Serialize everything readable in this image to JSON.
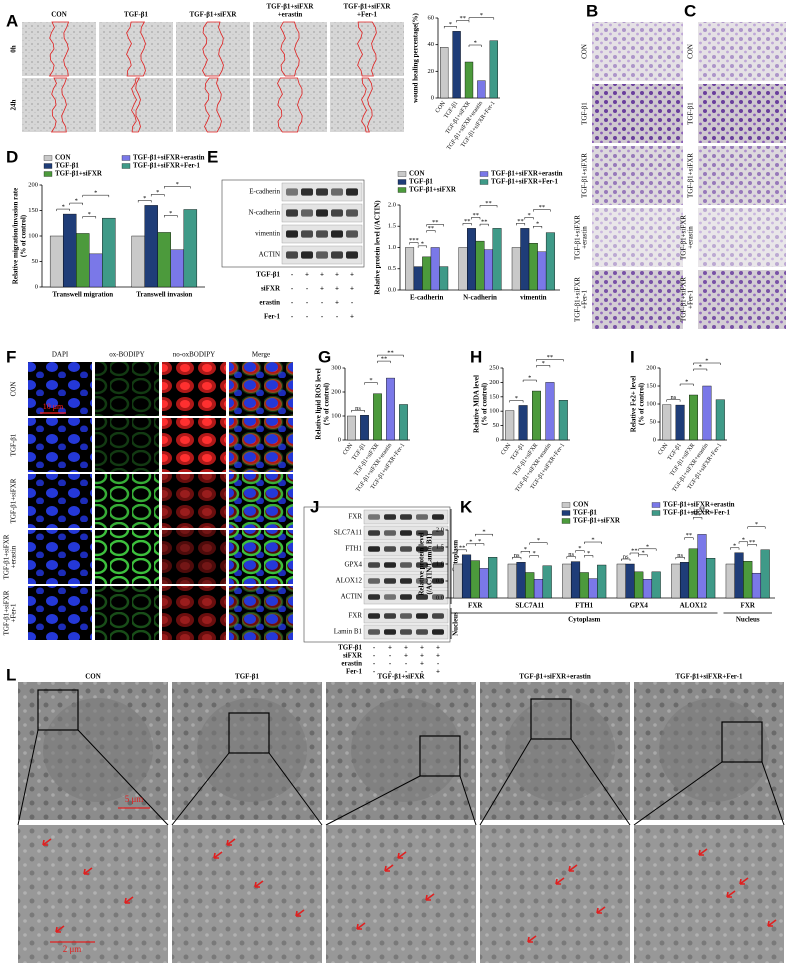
{
  "panel_labels": [
    "A",
    "B",
    "C",
    "D",
    "E",
    "F",
    "G",
    "H",
    "I",
    "J",
    "K",
    "L"
  ],
  "wound": {
    "columns": [
      [
        "CON"
      ],
      [
        "TGF-β1"
      ],
      [
        "TGF-β1+siFXR"
      ],
      [
        "TGF-β1+siFXR",
        "+erastin"
      ],
      [
        "TGF-β1+siFXR",
        "+Fer-1"
      ]
    ],
    "rows": [
      "0h",
      "24h"
    ]
  },
  "transwell_B": {
    "rows": [
      [
        "CON"
      ],
      [
        "TGF-β1"
      ],
      [
        "TGF-β1+siFXR"
      ],
      [
        "TGF-β1+siFXR",
        "+erastin"
      ],
      [
        "TGF-β1+siFXR",
        "+Fer-1"
      ]
    ]
  },
  "transwell_C": {
    "rows": [
      [
        "CON"
      ],
      [
        "TGF-β1"
      ],
      [
        "TGF-β1+siFXR"
      ],
      [
        "TGF-β1+siFXR",
        "+erastin"
      ],
      [
        "TGF-β1+siFXR",
        "+Fer-1"
      ]
    ]
  },
  "blot_E": {
    "bands": [
      "E-cadherin",
      "N-cadherin",
      "vimentin",
      "ACTIN"
    ],
    "treatments": [
      {
        "name": "TGF-β1",
        "signs": [
          "-",
          "+",
          "+",
          "+",
          "+"
        ]
      },
      {
        "name": "siFXR",
        "signs": [
          "-",
          "-",
          "+",
          "+",
          "+"
        ]
      },
      {
        "name": "erastin",
        "signs": [
          "-",
          "-",
          "-",
          "+",
          "-"
        ]
      },
      {
        "name": "Fer-1",
        "signs": [
          "-",
          "-",
          "-",
          "-",
          "+"
        ]
      }
    ]
  },
  "fluorescence": {
    "columns": [
      "DAPI",
      "ox-BODIPY",
      "no-oxBODIPY",
      "Merge"
    ],
    "rows": [
      [
        "CON"
      ],
      [
        "TGF-β1"
      ],
      [
        "TGF-β1+siFXR"
      ],
      [
        "TGF-β1+siFXR",
        "+erastin"
      ],
      [
        "TGF-β1+siFXR",
        "+Fer-1"
      ]
    ],
    "scale_bar": "10 μm"
  },
  "blot_J": {
    "bands": [
      "FXR",
      "SLC7A11",
      "FTH1",
      "GPX4",
      "ALOX12",
      "ACTIN",
      "FXR",
      "Lamin B1"
    ],
    "sections": [
      "Cytoplasm",
      "Nucleus"
    ],
    "treatments": [
      {
        "name": "TGF-β1",
        "signs": [
          "-",
          "+",
          "+",
          "+",
          "+"
        ]
      },
      {
        "name": "siFXR",
        "signs": [
          "-",
          "-",
          "+",
          "+",
          "+"
        ]
      },
      {
        "name": "erastin",
        "signs": [
          "-",
          "-",
          "-",
          "+",
          "-"
        ]
      },
      {
        "name": "Fer-1",
        "signs": [
          "-",
          "-",
          "-",
          "-",
          "+"
        ]
      }
    ]
  },
  "em": {
    "columns": [
      "CON",
      "TGF-β1",
      "TGF-β1+siFXR",
      "TGF-β1+siFXR+erastin",
      "TGF-β1+siFXR+Fer-1"
    ],
    "scale_bars": [
      "5 μm",
      "2 μm"
    ]
  },
  "chart_data": [
    {
      "type": "bar",
      "ylabel": [
        "wound healing percentage(%)"
      ],
      "categories": [
        "CON",
        "TGF-β1",
        "TGF-β1+siFXR",
        "TGF-β1+siFXR+erastin",
        "TGF-β1+siFXR+Fer-1"
      ],
      "values": [
        38,
        50,
        27,
        13,
        43
      ],
      "colors": [
        "#c9c9c9",
        "#1f3d78",
        "#4c9a3c",
        "#7a78e8",
        "#3f9a88"
      ],
      "ylim": [
        0,
        60
      ],
      "yticks": [
        0,
        20,
        40,
        60
      ],
      "annotations": [
        {
          "pair": [
            0,
            1
          ],
          "text": "*"
        },
        {
          "pair": [
            1,
            2
          ],
          "text": "**"
        },
        {
          "pair": [
            2,
            3
          ],
          "text": "*"
        },
        {
          "pair": [
            2,
            4
          ],
          "text": "*"
        }
      ]
    },
    {
      "type": "grouped_bar",
      "ylabel": [
        "Relative migration/invasion rate",
        "(% of control)"
      ],
      "categories": [
        "Transwell migration",
        "Transwell invasion"
      ],
      "series": [
        {
          "name": "CON",
          "color": "#c9c9c9",
          "values": [
            100,
            100
          ]
        },
        {
          "name": "TGF-β1",
          "color": "#1f3d78",
          "values": [
            143,
            160
          ]
        },
        {
          "name": "TGF-β1+siFXR",
          "color": "#4c9a3c",
          "values": [
            105,
            107
          ]
        },
        {
          "name": "TGF-β1+siFXR+erastin",
          "color": "#7a78e8",
          "values": [
            65,
            73
          ]
        },
        {
          "name": "TGF-β1+siFXR+Fer-1",
          "color": "#3f9a88",
          "values": [
            135,
            152
          ]
        }
      ],
      "ylim": [
        0,
        200
      ],
      "yticks": [
        0,
        50,
        100,
        150,
        200
      ],
      "annotations": [
        {
          "group": 0,
          "pair": [
            0,
            1
          ],
          "text": "*"
        },
        {
          "group": 0,
          "pair": [
            1,
            2
          ],
          "text": "*"
        },
        {
          "group": 0,
          "pair": [
            2,
            3
          ],
          "text": "*"
        },
        {
          "group": 0,
          "pair": [
            2,
            4
          ],
          "text": "*"
        },
        {
          "group": 1,
          "pair": [
            0,
            1
          ],
          "text": "*"
        },
        {
          "group": 1,
          "pair": [
            1,
            2
          ],
          "text": "*"
        },
        {
          "group": 1,
          "pair": [
            2,
            3
          ],
          "text": "*"
        },
        {
          "group": 1,
          "pair": [
            2,
            4
          ],
          "text": "*"
        }
      ]
    },
    {
      "type": "grouped_bar",
      "ylabel": [
        "Relative protein level (/ACTIN)"
      ],
      "categories": [
        "E-cadherin",
        "N-cadherin",
        "vimentin"
      ],
      "series": [
        {
          "name": "CON",
          "color": "#c9c9c9",
          "values": [
            1.0,
            1.0,
            1.0
          ]
        },
        {
          "name": "TGF-β1",
          "color": "#1f3d78",
          "values": [
            0.55,
            1.45,
            1.45
          ]
        },
        {
          "name": "TGF-β1+siFXR",
          "color": "#4c9a3c",
          "values": [
            0.78,
            1.15,
            1.1
          ]
        },
        {
          "name": "TGF-β1+siFXR+erastin",
          "color": "#7a78e8",
          "values": [
            1.0,
            0.95,
            0.9
          ]
        },
        {
          "name": "TGF-β1+siFXR+Fer-1",
          "color": "#3f9a88",
          "values": [
            0.55,
            1.45,
            1.35
          ]
        }
      ],
      "ylim": [
        0,
        2
      ],
      "yticks": [
        {
          "value": 0,
          "label": "0.0"
        },
        0.5,
        {
          "value": 1,
          "label": "1.0"
        },
        1.5,
        {
          "value": 2,
          "label": "2.0"
        }
      ],
      "annotations": [
        {
          "group": 0,
          "pair": [
            0,
            1
          ],
          "text": "***"
        },
        {
          "group": 0,
          "pair": [
            1,
            2
          ],
          "text": "*"
        },
        {
          "group": 0,
          "pair": [
            2,
            3
          ],
          "text": "**"
        },
        {
          "group": 0,
          "pair": [
            2,
            4
          ],
          "text": "**"
        },
        {
          "group": 1,
          "pair": [
            0,
            1
          ],
          "text": "**"
        },
        {
          "group": 1,
          "pair": [
            1,
            2
          ],
          "text": "**"
        },
        {
          "group": 1,
          "pair": [
            2,
            3
          ],
          "text": "**"
        },
        {
          "group": 1,
          "pair": [
            2,
            4
          ],
          "text": "**"
        },
        {
          "group": 2,
          "pair": [
            0,
            1
          ],
          "text": "**"
        },
        {
          "group": 2,
          "pair": [
            1,
            2
          ],
          "text": "*"
        },
        {
          "group": 2,
          "pair": [
            2,
            3
          ],
          "text": "*"
        },
        {
          "group": 2,
          "pair": [
            2,
            4
          ],
          "text": "**"
        }
      ]
    },
    {
      "type": "bar",
      "ylabel": [
        "Relative lipid ROS level",
        "(% of control)"
      ],
      "categories": [
        "CON",
        "TGF-β1",
        "TGF-β1+siFXR",
        "TGF-β1+siFXR+erastin",
        "TGF-β1+siFXR+Fer-1"
      ],
      "values": [
        100,
        103,
        193,
        258,
        148
      ],
      "colors": [
        "#c9c9c9",
        "#1f3d78",
        "#4c9a3c",
        "#7a78e8",
        "#3f9a88"
      ],
      "ylim": [
        0,
        300
      ],
      "yticks": [
        0,
        100,
        200,
        300
      ],
      "annotations": [
        {
          "pair": [
            0,
            1
          ],
          "text": "ns"
        },
        {
          "pair": [
            1,
            2
          ],
          "text": "*"
        },
        {
          "pair": [
            2,
            3
          ],
          "text": "**"
        },
        {
          "pair": [
            2,
            4
          ],
          "text": "**"
        }
      ]
    },
    {
      "type": "bar",
      "ylabel": [
        "Relative MDA level",
        "(% of control)"
      ],
      "categories": [
        "CON",
        "TGF-β1",
        "TGF-β1+siFXR",
        "TGF-β1+siFXR+erastin",
        "TGF-β1+siFXR+Fer-1"
      ],
      "values": [
        102,
        120,
        170,
        200,
        138
      ],
      "colors": [
        "#c9c9c9",
        "#1f3d78",
        "#4c9a3c",
        "#7a78e8",
        "#3f9a88"
      ],
      "ylim": [
        0,
        250
      ],
      "yticks": [
        0,
        50,
        100,
        150,
        200,
        250
      ],
      "annotations": [
        {
          "pair": [
            0,
            1
          ],
          "text": "*"
        },
        {
          "pair": [
            1,
            2
          ],
          "text": "*"
        },
        {
          "pair": [
            2,
            3
          ],
          "text": "*"
        },
        {
          "pair": [
            2,
            4
          ],
          "text": "**"
        }
      ]
    },
    {
      "type": "bar",
      "ylabel": [
        "Relative Fe2+ level",
        "(% of control)"
      ],
      "categories": [
        "CON",
        "TGF-β1",
        "TGF-β1+siFXR",
        "TGF-β1+siFXR+erastin",
        "TGF-β1+siFXR+Fer-1"
      ],
      "values": [
        98,
        97,
        125,
        150,
        112
      ],
      "colors": [
        "#c9c9c9",
        "#1f3d78",
        "#4c9a3c",
        "#7a78e8",
        "#3f9a88"
      ],
      "ylim": [
        0,
        200
      ],
      "yticks": [
        0,
        50,
        100,
        150,
        200
      ],
      "annotations": [
        {
          "pair": [
            0,
            1
          ],
          "text": "ns"
        },
        {
          "pair": [
            1,
            2
          ],
          "text": "*"
        },
        {
          "pair": [
            2,
            3
          ],
          "text": "*"
        },
        {
          "pair": [
            2,
            4
          ],
          "text": "*"
        }
      ]
    },
    {
      "type": "grouped_bar",
      "ylabel": [
        "Relative protein level",
        "(/ACTIN/Lamin B1)"
      ],
      "categories": [
        "FXR",
        "SLC7A11",
        "FTH1",
        "GPX4",
        "ALOX12",
        "FXR"
      ],
      "sections": [
        {
          "label": "Cytoplasm",
          "groups": [
            0,
            4
          ]
        },
        {
          "label": "Nucleus",
          "groups": [
            5,
            5
          ]
        }
      ],
      "series": [
        {
          "name": "CON",
          "color": "#c9c9c9",
          "values": [
            1.0,
            1.0,
            1.0,
            1.0,
            1.0,
            1.0
          ]
        },
        {
          "name": "TGF-β1",
          "color": "#1f3d78",
          "values": [
            1.27,
            1.05,
            1.07,
            1.0,
            1.05,
            1.33
          ]
        },
        {
          "name": "TGF-β1+siFXR",
          "color": "#4c9a3c",
          "values": [
            1.1,
            0.75,
            0.75,
            0.77,
            1.45,
            1.08
          ]
        },
        {
          "name": "TGF-β1+siFXR+erastin",
          "color": "#7a78e8",
          "values": [
            0.87,
            0.55,
            0.57,
            0.55,
            1.87,
            0.73
          ]
        },
        {
          "name": "TGF-β1+siFXR+Fer-1",
          "color": "#3f9a88",
          "values": [
            1.2,
            0.95,
            0.97,
            0.77,
            1.17,
            1.42
          ]
        }
      ],
      "ylim": [
        0,
        2
      ],
      "yticks": [
        {
          "value": 0,
          "label": "0.0"
        },
        0.5,
        {
          "value": 1,
          "label": "1.0"
        },
        1.5,
        {
          "value": 2,
          "label": "2.0"
        }
      ],
      "annotations": [
        {
          "group": 0,
          "pair": [
            0,
            1
          ],
          "text": "**"
        },
        {
          "group": 0,
          "pair": [
            1,
            2
          ],
          "text": "*"
        },
        {
          "group": 0,
          "pair": [
            2,
            3
          ],
          "text": "*"
        },
        {
          "group": 0,
          "pair": [
            2,
            4
          ],
          "text": "*"
        },
        {
          "group": 1,
          "pair": [
            0,
            1
          ],
          "text": "ns"
        },
        {
          "group": 1,
          "pair": [
            1,
            2
          ],
          "text": "*"
        },
        {
          "group": 1,
          "pair": [
            2,
            3
          ],
          "text": "*"
        },
        {
          "group": 1,
          "pair": [
            2,
            4
          ],
          "text": "*"
        },
        {
          "group": 2,
          "pair": [
            0,
            1
          ],
          "text": "ns"
        },
        {
          "group": 2,
          "pair": [
            1,
            2
          ],
          "text": "*"
        },
        {
          "group": 2,
          "pair": [
            2,
            3
          ],
          "text": "*"
        },
        {
          "group": 2,
          "pair": [
            2,
            4
          ],
          "text": "*"
        },
        {
          "group": 3,
          "pair": [
            0,
            1
          ],
          "text": "ns"
        },
        {
          "group": 3,
          "pair": [
            1,
            2
          ],
          "text": "**"
        },
        {
          "group": 3,
          "pair": [
            2,
            3
          ],
          "text": "*"
        },
        {
          "group": 3,
          "pair": [
            2,
            4
          ],
          "text": "*"
        },
        {
          "group": 4,
          "pair": [
            0,
            1
          ],
          "text": "ns"
        },
        {
          "group": 4,
          "pair": [
            1,
            2
          ],
          "text": "**"
        },
        {
          "group": 4,
          "pair": [
            2,
            3
          ],
          "text": "**"
        },
        {
          "group": 4,
          "pair": [
            2,
            4
          ],
          "text": "**"
        },
        {
          "group": 5,
          "pair": [
            0,
            1
          ],
          "text": "*"
        },
        {
          "group": 5,
          "pair": [
            1,
            2
          ],
          "text": "*"
        },
        {
          "group": 5,
          "pair": [
            2,
            3
          ],
          "text": "**"
        },
        {
          "group": 5,
          "pair": [
            2,
            4
          ],
          "text": "*"
        }
      ]
    }
  ]
}
